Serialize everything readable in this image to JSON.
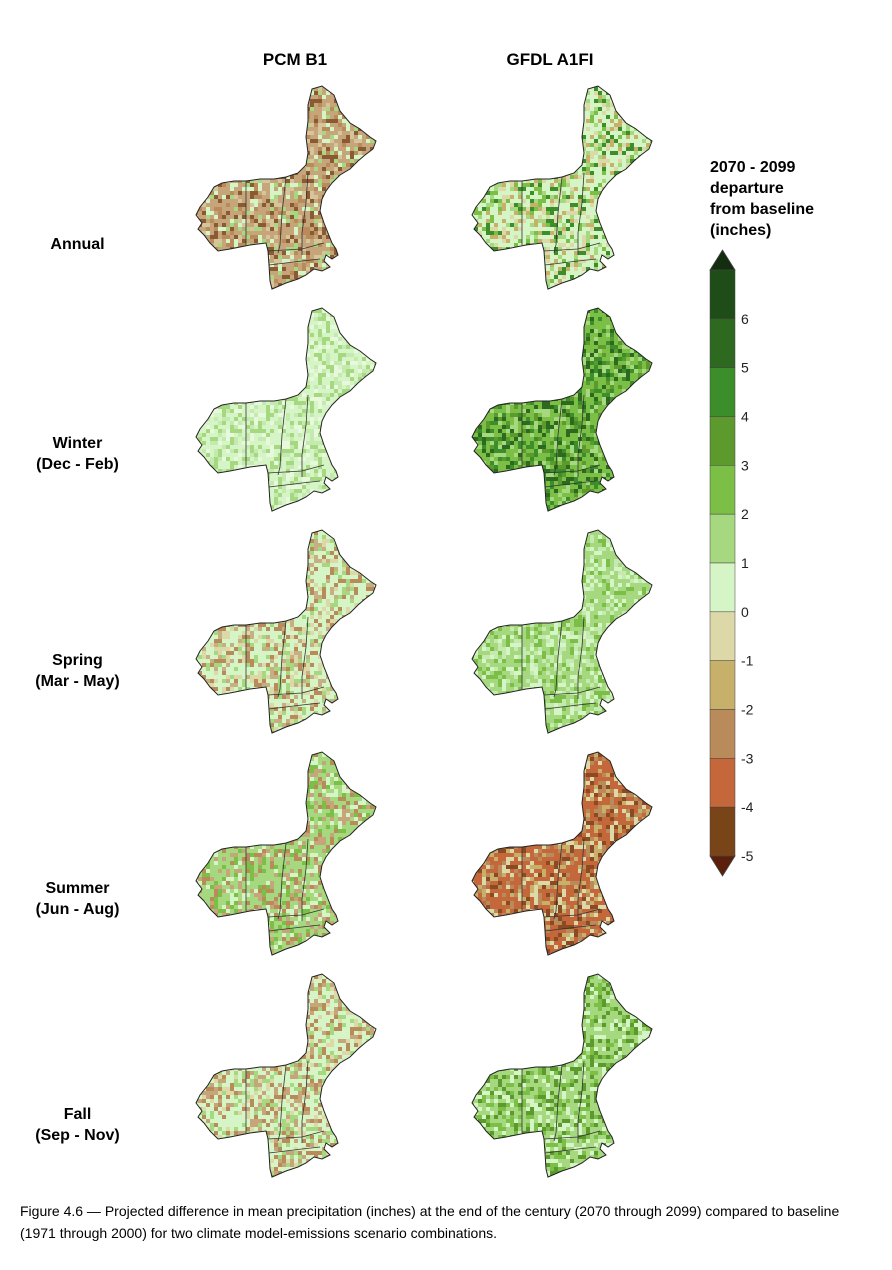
{
  "columns": [
    "PCM B1",
    "GFDL A1FI"
  ],
  "rows": [
    {
      "label": "Annual",
      "sublabel": ""
    },
    {
      "label": "Winter",
      "sublabel": "(Dec - Feb)"
    },
    {
      "label": "Spring",
      "sublabel": "(Mar - May)"
    },
    {
      "label": "Summer",
      "sublabel": "(Jun - Aug)"
    },
    {
      "label": "Fall",
      "sublabel": "(Sep - Nov)"
    }
  ],
  "legend": {
    "title_line1": "2070 - 2099",
    "title_line2": "departure",
    "title_line3": "from baseline",
    "title_line4": "(inches)",
    "ticks": [
      "6",
      "5",
      "4",
      "3",
      "2",
      "1",
      "0",
      "-1",
      "-2",
      "-3",
      "-4",
      "-5"
    ],
    "colors": [
      "#5c1f0c",
      "#7a4419",
      "#c4673a",
      "#b98a5a",
      "#c6b06a",
      "#ddd8a7",
      "#d6f5c6",
      "#a6d880",
      "#7bbf47",
      "#5d9a2d",
      "#3c8e2b",
      "#2d6a1f",
      "#1f4d17",
      "#132e0e"
    ]
  },
  "maps": [
    {
      "row": "Annual",
      "column": "PCM B1",
      "dominant_category": "0 to -2",
      "palette": [
        "#c6a57a",
        "#b98a5a",
        "#d6c49a",
        "#8a5a35",
        "#d6f5c6",
        "#a6d880"
      ]
    },
    {
      "row": "Annual",
      "column": "GFDL A1FI",
      "dominant_category": "0 to 2",
      "palette": [
        "#d6f5c6",
        "#a6d880",
        "#7bbf47",
        "#ddd8a7",
        "#c6b06a",
        "#3c8e2b"
      ]
    },
    {
      "row": "Winter",
      "column": "PCM B1",
      "dominant_category": "0 to 1",
      "palette": [
        "#d6f5c6",
        "#c4eaaf",
        "#a6d880",
        "#e8f8dd"
      ]
    },
    {
      "row": "Winter",
      "column": "GFDL A1FI",
      "dominant_category": "1 to 4",
      "palette": [
        "#7bbf47",
        "#5d9a2d",
        "#a6d880",
        "#3c8e2b",
        "#2d6a1f"
      ]
    },
    {
      "row": "Spring",
      "column": "PCM B1",
      "dominant_category": "-1 to 1",
      "palette": [
        "#d6f5c6",
        "#c6b083",
        "#a6d880",
        "#b98a5a",
        "#ddd8a7"
      ]
    },
    {
      "row": "Spring",
      "column": "GFDL A1FI",
      "dominant_category": "0 to 2",
      "palette": [
        "#a6d880",
        "#d6f5c6",
        "#7bbf47",
        "#c4eaaf"
      ]
    },
    {
      "row": "Summer",
      "column": "PCM B1",
      "dominant_category": "-1 to 2",
      "palette": [
        "#a6d880",
        "#d6f5c6",
        "#c6a57a",
        "#7bbf47",
        "#b98a5a"
      ]
    },
    {
      "row": "Summer",
      "column": "GFDL A1FI",
      "dominant_category": "-1 to -4",
      "palette": [
        "#c4673a",
        "#b98a5a",
        "#c6b06a",
        "#ddd8a7",
        "#8a4a22"
      ]
    },
    {
      "row": "Fall",
      "column": "PCM B1",
      "dominant_category": "-1 to 1",
      "palette": [
        "#d6f5c6",
        "#c6a57a",
        "#a6d880",
        "#ddd8a7",
        "#b98a5a"
      ]
    },
    {
      "row": "Fall",
      "column": "GFDL A1FI",
      "dominant_category": "0 to 3",
      "palette": [
        "#a6d880",
        "#7bbf47",
        "#d6f5c6",
        "#5d9a2d"
      ]
    }
  ],
  "caption": "Figure 4.6 — Projected difference in mean precipitation (inches) at the end of the century (2070 through 2099) compared to baseline (1971 through 2000) for two climate model-emissions scenario combinations."
}
